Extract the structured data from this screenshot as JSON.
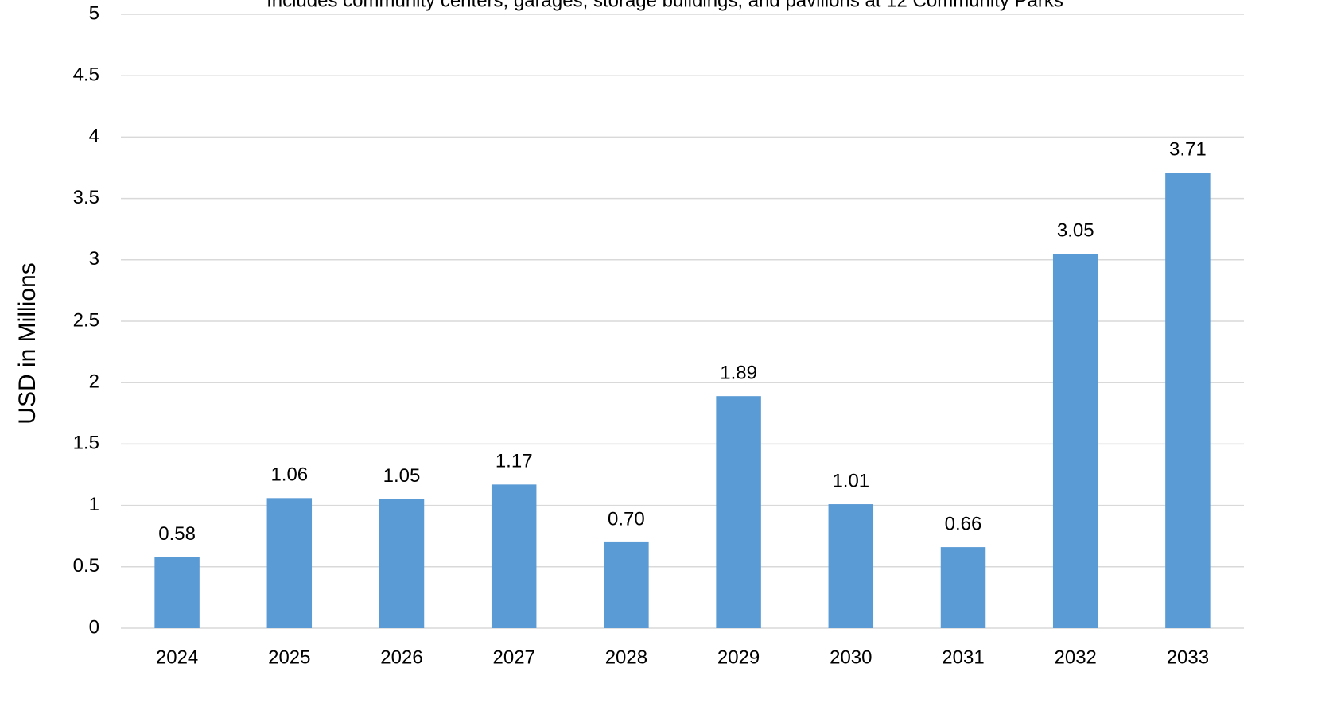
{
  "chart_data": {
    "type": "bar",
    "subtitle": "Includes community centers, garages, storage buildings, and pavilions at 12 Community Parks",
    "y_label": "USD in Millions",
    "categories": [
      "2024",
      "2025",
      "2026",
      "2027",
      "2028",
      "2029",
      "2030",
      "2031",
      "2032",
      "2033"
    ],
    "values": [
      0.58,
      1.06,
      1.05,
      1.17,
      0.7,
      1.89,
      1.01,
      0.66,
      3.05,
      3.71
    ],
    "value_labels": [
      "0.58",
      "1.06",
      "1.05",
      "1.17",
      "0.70",
      "1.89",
      "1.01",
      "0.66",
      "3.05",
      "3.71"
    ],
    "color": "#5b9bd5",
    "ylim": [
      0,
      5
    ],
    "yticks": [
      0,
      0.5,
      1,
      1.5,
      2,
      2.5,
      3,
      3.5,
      4,
      4.5,
      5
    ],
    "grid": true
  }
}
